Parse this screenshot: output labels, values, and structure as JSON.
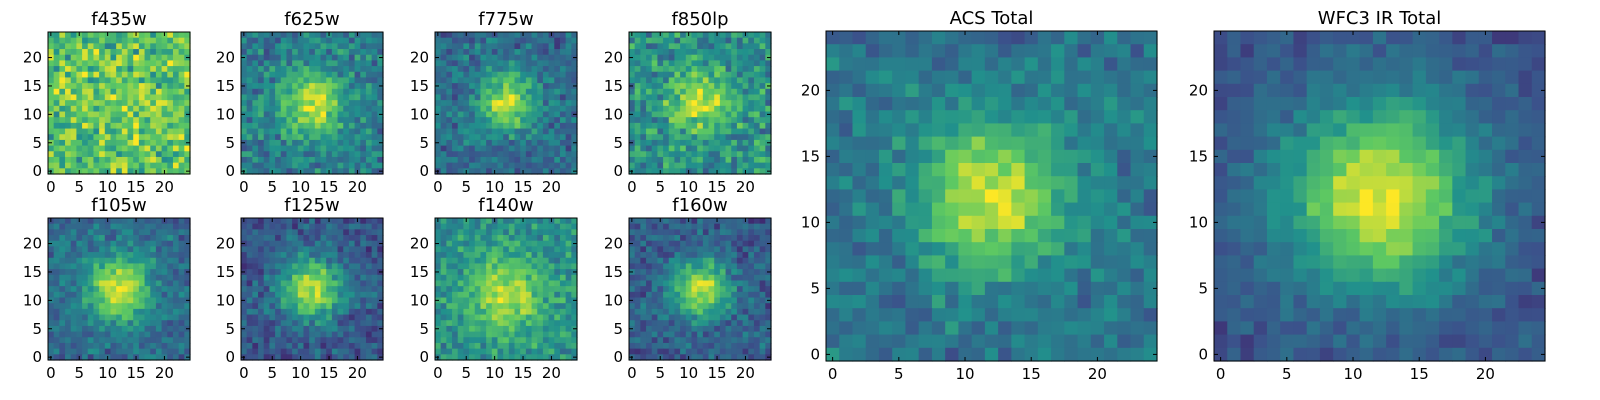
{
  "figure": {
    "colormap": [
      "#440154",
      "#3b528b",
      "#21918c",
      "#5ec962",
      "#fde725"
    ],
    "grid_size": 25,
    "panels": [
      {
        "id": "f435w",
        "title": "f435w",
        "x_ticks": [
          "0",
          "5",
          "10",
          "15",
          "20"
        ],
        "y_ticks": [
          "0",
          "5",
          "10",
          "15",
          "20"
        ],
        "peak": [
          12,
          12
        ],
        "width": 6.0,
        "amp": 0.03,
        "base": 0.72,
        "noise": 0.32,
        "seed": 11
      },
      {
        "id": "f625w",
        "title": "f625w",
        "x_ticks": [
          "0",
          "5",
          "10",
          "15",
          "20"
        ],
        "y_ticks": [
          "0",
          "5",
          "10",
          "15",
          "20"
        ],
        "peak": [
          12,
          12
        ],
        "width": 4.0,
        "amp": 0.48,
        "base": 0.42,
        "noise": 0.22,
        "seed": 23
      },
      {
        "id": "f775w",
        "title": "f775w",
        "x_ticks": [
          "0",
          "5",
          "10",
          "15",
          "20"
        ],
        "y_ticks": [
          "0",
          "5",
          "10",
          "15",
          "20"
        ],
        "peak": [
          12,
          12
        ],
        "width": 3.6,
        "amp": 0.55,
        "base": 0.35,
        "noise": 0.2,
        "seed": 37
      },
      {
        "id": "f850lp",
        "title": "f850lp",
        "x_ticks": [
          "0",
          "5",
          "10",
          "15",
          "20"
        ],
        "y_ticks": [
          "0",
          "5",
          "10",
          "15",
          "20"
        ],
        "peak": [
          12,
          12
        ],
        "width": 3.8,
        "amp": 0.38,
        "base": 0.5,
        "noise": 0.26,
        "seed": 41
      },
      {
        "id": "f105w",
        "title": "f105w",
        "x_ticks": [
          "0",
          "5",
          "10",
          "15",
          "20"
        ],
        "y_ticks": [
          "0",
          "5",
          "10",
          "15",
          "20"
        ],
        "peak": [
          12,
          12
        ],
        "width": 4.0,
        "amp": 0.6,
        "base": 0.35,
        "noise": 0.18,
        "seed": 53
      },
      {
        "id": "f125w",
        "title": "f125w",
        "x_ticks": [
          "0",
          "5",
          "10",
          "15",
          "20"
        ],
        "y_ticks": [
          "0",
          "5",
          "10",
          "15",
          "20"
        ],
        "peak": [
          12,
          12
        ],
        "width": 3.8,
        "amp": 0.62,
        "base": 0.28,
        "noise": 0.17,
        "seed": 67
      },
      {
        "id": "f140w",
        "title": "f140w",
        "x_ticks": [
          "0",
          "5",
          "10",
          "15",
          "20"
        ],
        "y_ticks": [
          "0",
          "5",
          "10",
          "15",
          "20"
        ],
        "peak": [
          12,
          11
        ],
        "width": 4.6,
        "amp": 0.4,
        "base": 0.5,
        "noise": 0.2,
        "seed": 79
      },
      {
        "id": "f160w",
        "title": "f160w",
        "x_ticks": [
          "0",
          "5",
          "10",
          "15",
          "20"
        ],
        "y_ticks": [
          "0",
          "5",
          "10",
          "15",
          "20"
        ],
        "peak": [
          12,
          12
        ],
        "width": 3.5,
        "amp": 0.6,
        "base": 0.3,
        "noise": 0.18,
        "seed": 83
      },
      {
        "id": "acs-total",
        "title": "ACS Total",
        "x_ticks": [
          "0",
          "5",
          "10",
          "15",
          "20"
        ],
        "y_ticks": [
          "0",
          "5",
          "10",
          "15",
          "20"
        ],
        "peak": [
          12,
          12
        ],
        "width": 4.0,
        "amp": 0.55,
        "base": 0.38,
        "noise": 0.16,
        "seed": 97
      },
      {
        "id": "wfc3-ir-total",
        "title": "WFC3 IR Total",
        "x_ticks": [
          "0",
          "5",
          "10",
          "15",
          "20"
        ],
        "y_ticks": [
          "0",
          "5",
          "10",
          "15",
          "20"
        ],
        "peak": [
          12,
          12
        ],
        "width": 5.0,
        "amp": 0.7,
        "base": 0.26,
        "noise": 0.11,
        "seed": 101
      }
    ]
  }
}
